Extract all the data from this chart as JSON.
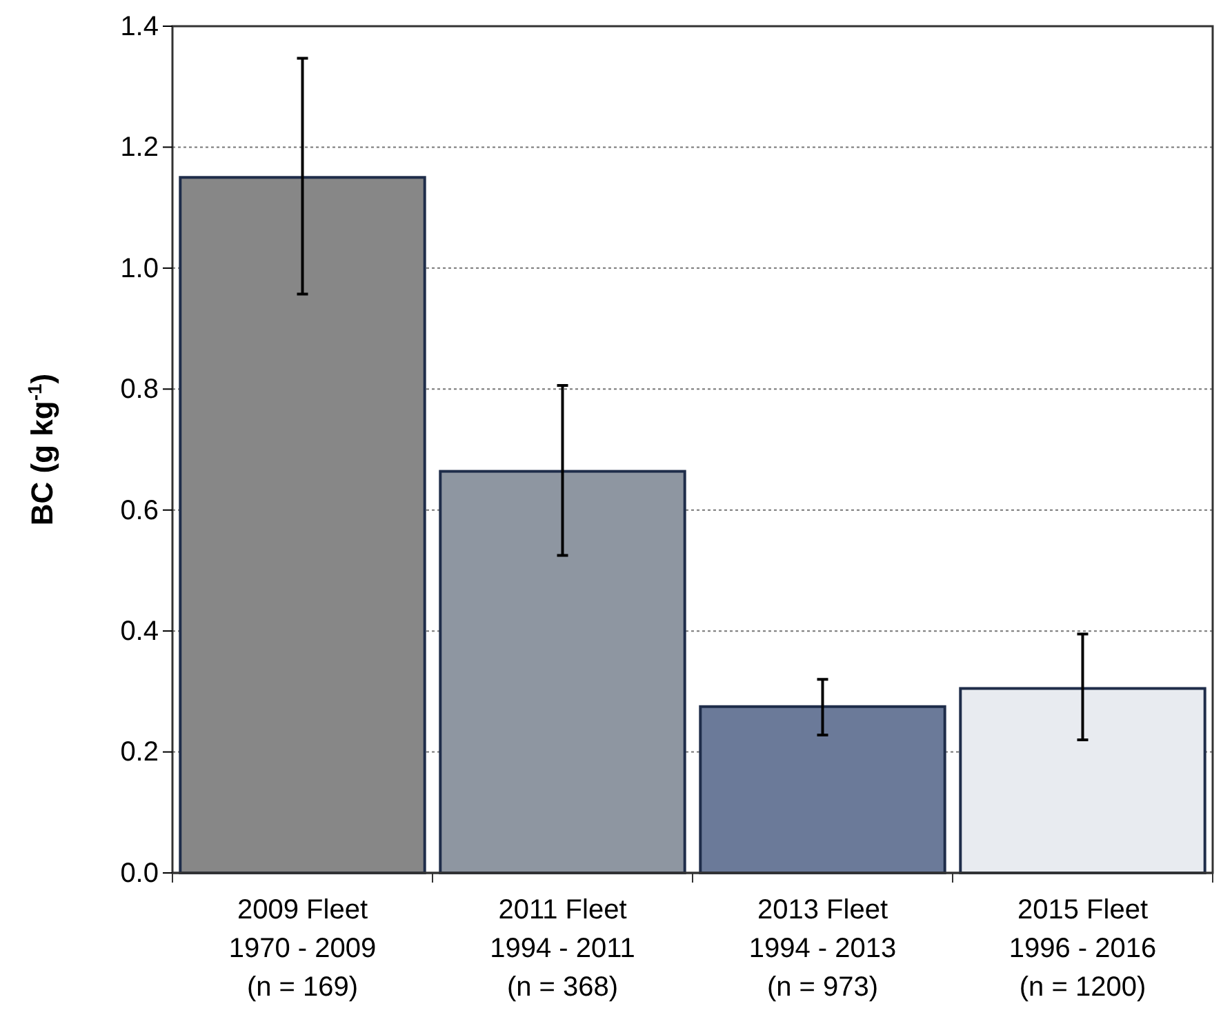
{
  "chart_data": {
    "type": "bar",
    "ylabel": "BC (g kg$^{-1}$)",
    "categories": [
      "2009 Fleet\n1970 - 2009\n(n = 169)",
      "2011 Fleet\n1994 - 2011\n(n = 368)",
      "2013 Fleet\n1994 - 2013\n(n = 973)",
      "2015 Fleet\n1996 - 2016\n(n = 1200)"
    ],
    "values": [
      1.15,
      0.664,
      0.275,
      0.305
    ],
    "colors": [
      "#878787",
      "#8e96a1",
      "#6b7a99",
      "#e8ebf0"
    ],
    "errors": [
      [
        0.957,
        1.347
      ],
      [
        0.525,
        0.806
      ],
      [
        0.228,
        0.32
      ],
      [
        0.22,
        0.395
      ]
    ],
    "ylim": [
      0,
      1.4
    ],
    "yticks": [
      {
        "value": 0,
        "label": "0.0"
      },
      {
        "value": 0.2,
        "label": "0.2"
      },
      {
        "value": 0.4,
        "label": "0.4"
      },
      {
        "value": 0.6,
        "label": "0.6"
      },
      {
        "value": 0.8,
        "label": "0.8"
      },
      {
        "value": 1,
        "label": "1.0"
      },
      {
        "value": 1.2,
        "label": "1.2"
      },
      {
        "value": 1.4,
        "label": "1.4"
      }
    ],
    "grid": "y"
  }
}
